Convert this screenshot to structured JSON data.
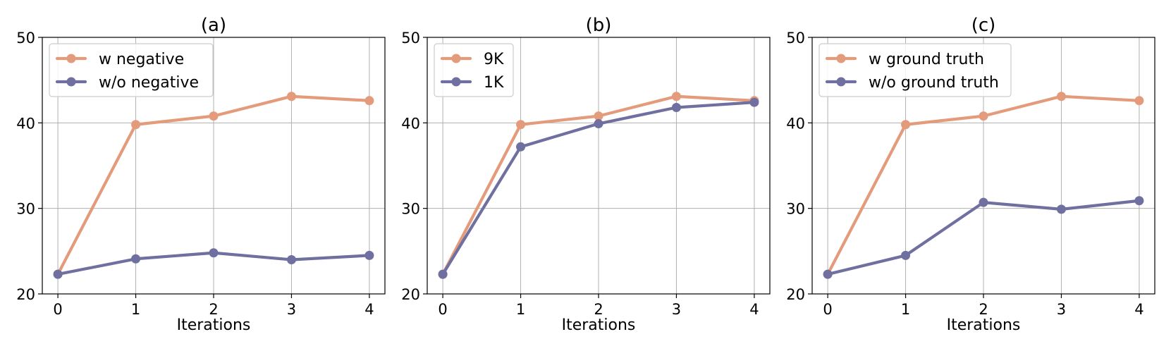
{
  "chart_data": [
    {
      "type": "line",
      "title": "(a)",
      "xlabel": "Iterations",
      "ylabel": "",
      "x": [
        0,
        1,
        2,
        3,
        4
      ],
      "xlim": [
        -0.2,
        4.2
      ],
      "ylim": [
        20,
        50
      ],
      "xticks": [
        "0",
        "1",
        "2",
        "3",
        "4"
      ],
      "yticks": [
        "20",
        "30",
        "40",
        "50"
      ],
      "grid": true,
      "legend": "top-left",
      "series": [
        {
          "name": "w negative",
          "color": "#E39B7B",
          "values": [
            22.3,
            39.8,
            40.8,
            43.1,
            42.6
          ]
        },
        {
          "name": "w/o negative",
          "color": "#6F6FA0",
          "values": [
            22.3,
            24.1,
            24.8,
            24.0,
            24.5
          ]
        }
      ]
    },
    {
      "type": "line",
      "title": "(b)",
      "xlabel": "Iterations",
      "ylabel": "",
      "x": [
        0,
        1,
        2,
        3,
        4
      ],
      "xlim": [
        -0.2,
        4.2
      ],
      "ylim": [
        20,
        50
      ],
      "xticks": [
        "0",
        "1",
        "2",
        "3",
        "4"
      ],
      "yticks": [
        "20",
        "30",
        "40",
        "50"
      ],
      "grid": true,
      "legend": "top-left",
      "series": [
        {
          "name": "9K",
          "color": "#E39B7B",
          "values": [
            22.3,
            39.8,
            40.8,
            43.1,
            42.6
          ]
        },
        {
          "name": "1K",
          "color": "#6F6FA0",
          "values": [
            22.3,
            37.2,
            39.9,
            41.8,
            42.4
          ]
        }
      ]
    },
    {
      "type": "line",
      "title": "(c)",
      "xlabel": "Iterations",
      "ylabel": "",
      "x": [
        0,
        1,
        2,
        3,
        4
      ],
      "xlim": [
        -0.2,
        4.2
      ],
      "ylim": [
        20,
        50
      ],
      "xticks": [
        "0",
        "1",
        "2",
        "3",
        "4"
      ],
      "yticks": [
        "20",
        "30",
        "40",
        "50"
      ],
      "grid": true,
      "legend": "top-left",
      "series": [
        {
          "name": "w ground truth",
          "color": "#E39B7B",
          "values": [
            22.3,
            39.8,
            40.8,
            43.1,
            42.6
          ]
        },
        {
          "name": "w/o ground truth",
          "color": "#6F6FA0",
          "values": [
            22.3,
            24.5,
            30.7,
            29.9,
            30.9
          ]
        }
      ]
    }
  ]
}
